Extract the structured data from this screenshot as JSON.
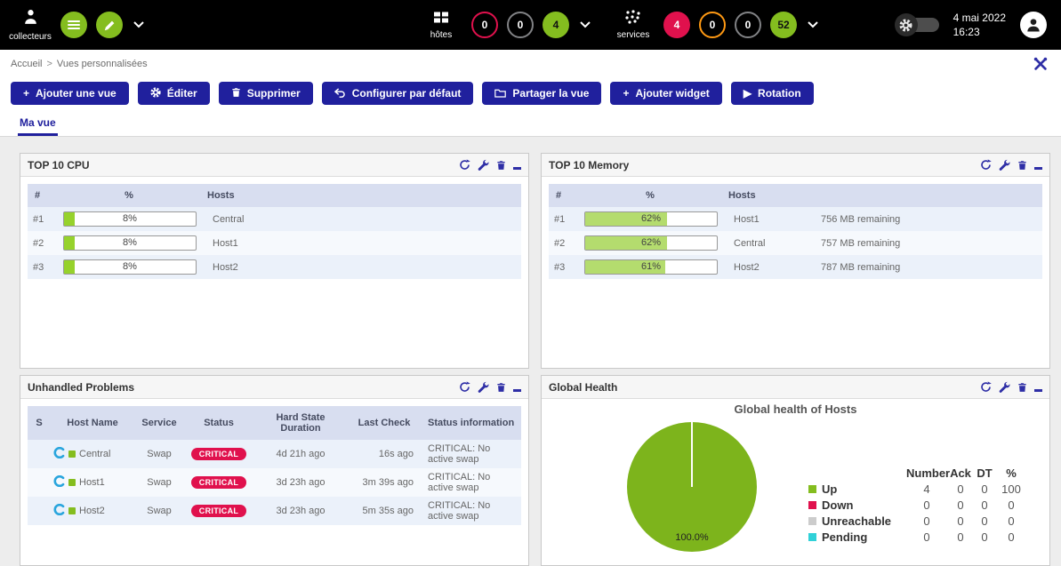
{
  "theme": {
    "brand-green": "#84bd1f",
    "status-red": "#e0114d",
    "status-orange": "#ff9913",
    "status-gray": "#818285",
    "status-cyan": "#30d1d8",
    "button-blue": "#20209d",
    "icon-blue": "#2e2ea6",
    "thead-bg": "#d8def0",
    "row-alt": "#ebf1fa",
    "pie-green": "#7db41c",
    "cpu-fill": "#96d22c",
    "mem-fill": "#b4dc6e",
    "unreachable-gray": "#cccccc"
  },
  "icons": {
    "plus": "+",
    "play": "▶",
    "breadcrumb_separator": ">",
    "names": [
      "poller-icon",
      "list-icon",
      "pencil-icon",
      "chevron-down-icon",
      "hosts-grid-icon",
      "services-dots-icon",
      "gear-icon",
      "user-icon",
      "crossed-tools-icon",
      "trash-icon",
      "undo-icon",
      "folder-icon",
      "refresh-icon",
      "wrench-icon",
      "minimize-icon",
      "centreon-logo-icon"
    ]
  },
  "topbar": {
    "pollers": {
      "label": "collecteurs"
    },
    "hosts": {
      "label": "hôtes",
      "counters": [
        {
          "value": "0",
          "style": "red-outline",
          "meaning": "down"
        },
        {
          "value": "0",
          "style": "gray-outline",
          "meaning": "unreachable"
        },
        {
          "value": "4",
          "style": "green-filled",
          "meaning": "up"
        }
      ]
    },
    "services": {
      "label": "services",
      "counters": [
        {
          "value": "4",
          "style": "red-filled",
          "meaning": "critical"
        },
        {
          "value": "0",
          "style": "orange-outline",
          "meaning": "warning"
        },
        {
          "value": "0",
          "style": "gray-outline",
          "meaning": "unknown"
        },
        {
          "value": "52",
          "style": "green-filled",
          "meaning": "ok"
        }
      ]
    },
    "clock": {
      "date": "4 mai 2022",
      "time": "16:23"
    }
  },
  "breadcrumb": {
    "home": "Accueil",
    "separator": ">",
    "current": "Vues personnalisées"
  },
  "toolbar": {
    "add_view": "Ajouter une vue",
    "edit": "Éditer",
    "delete": "Supprimer",
    "set_default": "Configurer par défaut",
    "share": "Partager la vue",
    "add_widget": "Ajouter widget",
    "rotation": "Rotation"
  },
  "tabs": {
    "my_view": "Ma vue"
  },
  "widgets": {
    "cpu": {
      "title": "TOP 10 CPU",
      "columns": [
        "#",
        "%",
        "Hosts"
      ],
      "rows": [
        {
          "rank": "#1",
          "percent": 8,
          "label": "8%",
          "host": "Central"
        },
        {
          "rank": "#2",
          "percent": 8,
          "label": "8%",
          "host": "Host1"
        },
        {
          "rank": "#3",
          "percent": 8,
          "label": "8%",
          "host": "Host2"
        }
      ]
    },
    "memory": {
      "title": "TOP 10 Memory",
      "columns": [
        "#",
        "%",
        "Hosts"
      ],
      "rows": [
        {
          "rank": "#1",
          "percent": 62,
          "label": "62%",
          "host": "Host1",
          "info": "756 MB remaining"
        },
        {
          "rank": "#2",
          "percent": 62,
          "label": "62%",
          "host": "Central",
          "info": "757 MB remaining"
        },
        {
          "rank": "#3",
          "percent": 61,
          "label": "61%",
          "host": "Host2",
          "info": "787 MB remaining"
        }
      ]
    },
    "problems": {
      "title": "Unhandled Problems",
      "columns": [
        "S",
        "Host Name",
        "Service",
        "Status",
        "Hard State Duration",
        "Last Check",
        "Status information"
      ],
      "rows": [
        {
          "host": "Central",
          "service": "Swap",
          "status": "CRITICAL",
          "duration": "4d 21h ago",
          "last_check": "16s ago",
          "info": "CRITICAL: No active swap"
        },
        {
          "host": "Host1",
          "service": "Swap",
          "status": "CRITICAL",
          "duration": "3d 23h ago",
          "last_check": "3m 39s ago",
          "info": "CRITICAL: No active swap"
        },
        {
          "host": "Host2",
          "service": "Swap",
          "status": "CRITICAL",
          "duration": "3d 23h ago",
          "last_check": "5m 35s ago",
          "info": "CRITICAL: No active swap"
        }
      ]
    },
    "health": {
      "title": "Global Health",
      "chart_title": "Global health of Hosts",
      "pie_label": "100.0%",
      "legend_columns": [
        "Number",
        "Ack",
        "DT",
        "%"
      ],
      "legend_rows": [
        {
          "label": "Up",
          "color": "#84bd1f",
          "number": "4",
          "ack": "0",
          "dt": "0",
          "pct": "100"
        },
        {
          "label": "Down",
          "color": "#e0114d",
          "number": "0",
          "ack": "0",
          "dt": "0",
          "pct": "0"
        },
        {
          "label": "Unreachable",
          "color": "#cccccc",
          "number": "0",
          "ack": "0",
          "dt": "0",
          "pct": "0"
        },
        {
          "label": "Pending",
          "color": "#30d1d8",
          "number": "0",
          "ack": "0",
          "dt": "0",
          "pct": "0"
        }
      ]
    }
  },
  "chart_data": {
    "type": "pie",
    "title": "Global health of Hosts",
    "labels": [
      "Up",
      "Down",
      "Unreachable",
      "Pending"
    ],
    "values": [
      100,
      0,
      0,
      0
    ],
    "colors": [
      "#84bd1f",
      "#e0114d",
      "#cccccc",
      "#30d1d8"
    ],
    "annotation": "100.0%",
    "legend_position": "right"
  }
}
